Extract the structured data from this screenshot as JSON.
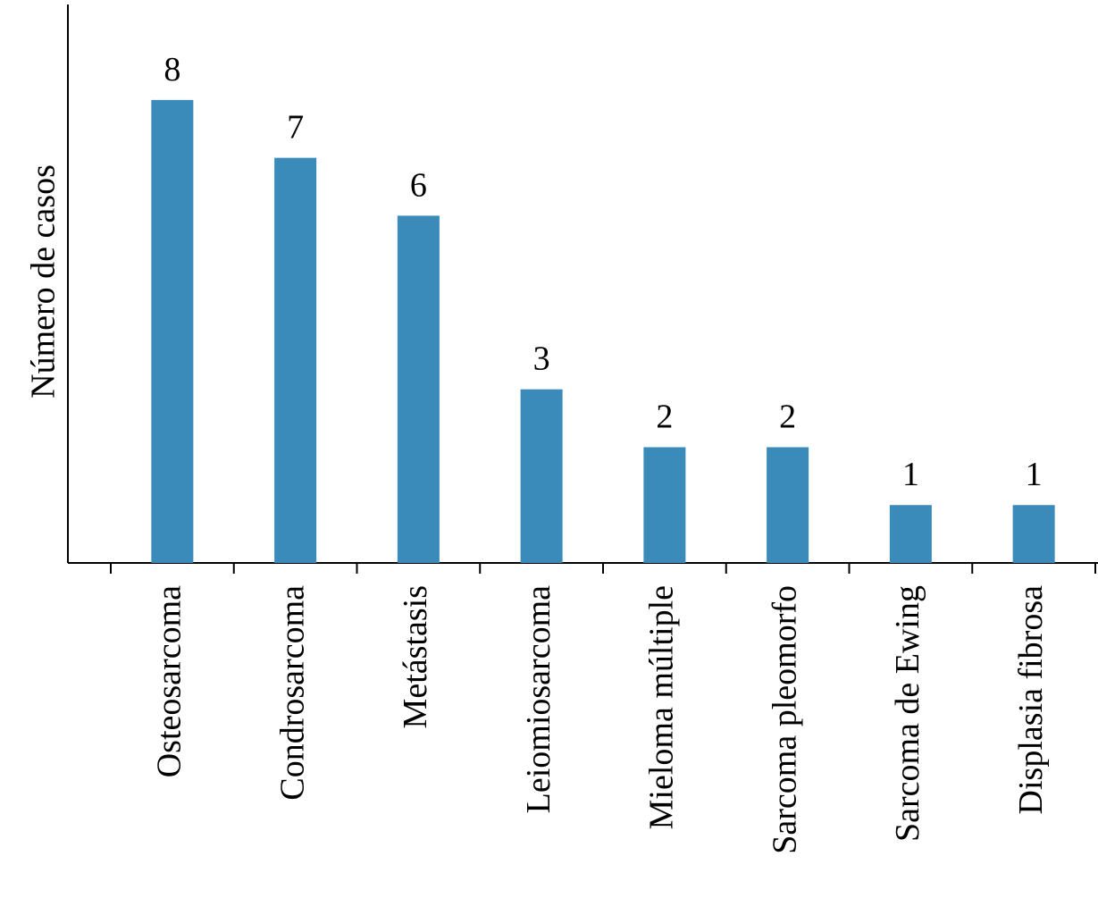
{
  "chart_data": {
    "type": "bar",
    "ylabel": "Número de casos",
    "categories": [
      "Osteosarcoma",
      "Condrosarcoma",
      "Metástasis",
      "Leiomiosarcoma",
      "Mieloma múltiple",
      "Sarcoma pleomorfo",
      "Sarcoma de Ewing",
      "Displasia fibrosa"
    ],
    "values": [
      8,
      7,
      6,
      3,
      2,
      2,
      1,
      1
    ],
    "color": "#3b8bba",
    "ylim": [
      0,
      9.65
    ]
  }
}
